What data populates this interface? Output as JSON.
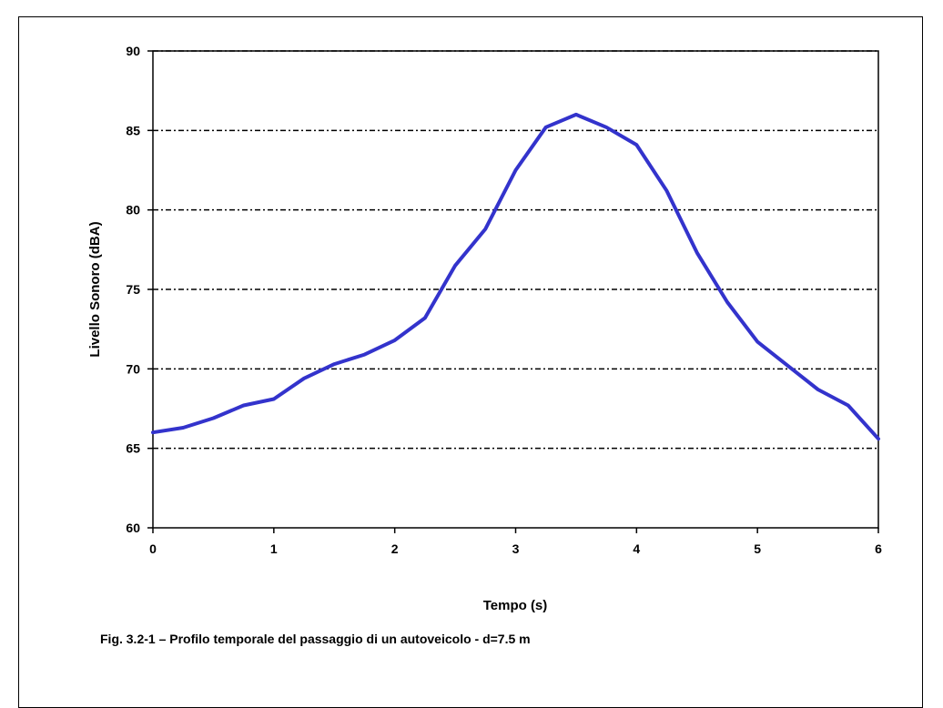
{
  "chart_data": {
    "type": "line",
    "title": "",
    "xlabel": "Tempo (s)",
    "ylabel": "Livello Sonoro (dBA)",
    "xlim": [
      0,
      6
    ],
    "ylim": [
      60,
      90
    ],
    "xticks": [
      "0",
      "1",
      "2",
      "3",
      "4",
      "5",
      "6"
    ],
    "yticks": [
      "60",
      "65",
      "70",
      "75",
      "80",
      "85",
      "90"
    ],
    "grid": "horizontal dash-dot",
    "legend": "none",
    "series": [
      {
        "color": "#3333cc",
        "x": [
          0,
          0.25,
          0.5,
          0.75,
          1,
          1.25,
          1.5,
          1.75,
          2,
          2.25,
          2.5,
          2.75,
          3,
          3.25,
          3.5,
          3.75,
          4,
          4.25,
          4.5,
          4.75,
          5,
          5.25,
          5.5,
          5.75,
          6
        ],
        "y": [
          66.0,
          66.3,
          66.9,
          67.7,
          68.1,
          69.4,
          70.3,
          70.9,
          71.8,
          73.2,
          76.5,
          78.8,
          82.5,
          85.2,
          86.0,
          85.2,
          84.1,
          81.2,
          77.3,
          74.2,
          71.7,
          70.2,
          68.7,
          67.7,
          65.6
        ]
      }
    ]
  },
  "caption": "Fig. 3.2-1 – Profilo temporale del passaggio di un autoveicolo - d=7.5 m"
}
